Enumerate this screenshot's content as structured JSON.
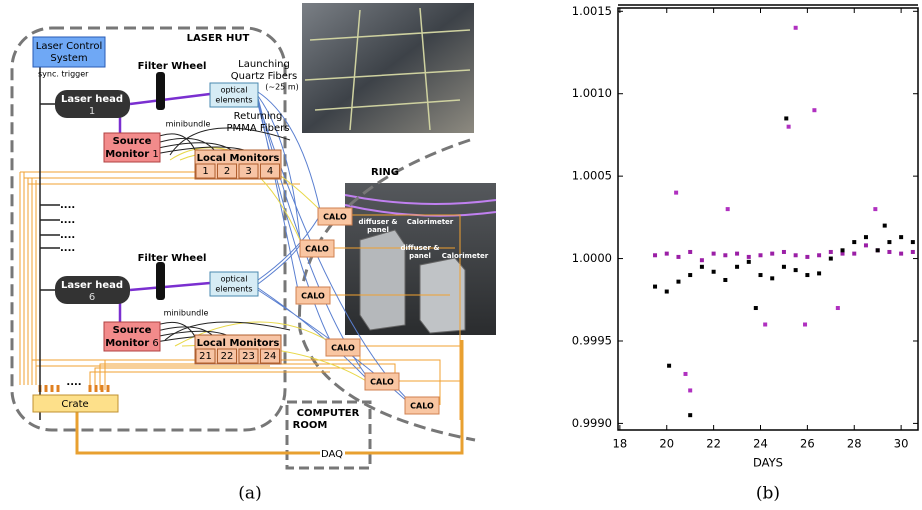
{
  "diagram": {
    "laser_hut": "LASER HUT",
    "laser_control": [
      "Laser Control",
      "System"
    ],
    "sync_trigger": "sync. trigger",
    "filter_wheels": [
      "Filter Wheel",
      "Filter Wheel"
    ],
    "laser_heads": [
      {
        "label": "Laser head",
        "number": "1"
      },
      {
        "label": "Laser head",
        "number": "6"
      }
    ],
    "optical_elements": [
      [
        "optical",
        "elements"
      ],
      [
        "optical",
        "elements"
      ]
    ],
    "launching": [
      "Launching",
      "Quartz Fibers",
      "(~25 m)"
    ],
    "returning": [
      "Returning",
      "PMMA Fibers"
    ],
    "minibundle": [
      "minibundle",
      "minibundle"
    ],
    "source_monitors": [
      {
        "label": [
          "Source",
          "Monitor"
        ],
        "number": "1"
      },
      {
        "label": [
          "Source",
          "Monitor"
        ],
        "number": "6"
      }
    ],
    "local_monitors": [
      {
        "label": "Local Monitors",
        "numbers": [
          "1",
          "2",
          "3",
          "4"
        ]
      },
      {
        "label": "Local Monitors",
        "numbers": [
          "21",
          "22",
          "23",
          "24"
        ]
      }
    ],
    "dots": [
      "....",
      "....",
      "....",
      "...."
    ],
    "crate": "Crate",
    "crate_dots": "....",
    "computer_room": [
      "COMPUTER",
      "ROOM"
    ],
    "daq": "DAQ",
    "ring": "RING",
    "calo": [
      "CALO",
      "CALO",
      "CALO",
      "CALO",
      "CALO",
      "CALO"
    ],
    "ring_photo_labels": [
      "diffuser &",
      "panel",
      "Calorimeter",
      "diffuser &",
      "panel",
      "Calorimeter"
    ]
  },
  "chart_data": {
    "type": "scatter",
    "xlabel": "DAYS",
    "xlim": [
      17.92,
      30.72
    ],
    "ylim": [
      0.99896,
      1.00152
    ],
    "xticks": [
      18,
      20,
      22,
      24,
      26,
      28,
      30
    ],
    "yticks": [
      {
        "value": 0.999,
        "label": "0.9990"
      },
      {
        "value": 0.9995,
        "label": "0.9995"
      },
      {
        "value": 1,
        "label": "1.0000"
      },
      {
        "value": 1.0005,
        "label": "1.0005"
      },
      {
        "value": 1.001,
        "label": "1.0010"
      },
      {
        "value": 1.0015,
        "label": "1.0015"
      }
    ],
    "series": [
      {
        "color": "#9b1fa6",
        "x": [
          19.5,
          20,
          20.5,
          21,
          21.5,
          22,
          22.5,
          23,
          23.5,
          24,
          24.5,
          25,
          25.5,
          26,
          26.5,
          27,
          27.5,
          28,
          28.5,
          29,
          29.5,
          30,
          30.5
        ],
        "values": [
          1.00002,
          1.00003,
          1.00001,
          1.00004,
          0.99999,
          1.00003,
          1.00002,
          1.00003,
          1.00001,
          1.00002,
          1.00003,
          1.00004,
          1.00002,
          1.00001,
          1.00002,
          1.00004,
          1.00003,
          1.00003,
          1.00008,
          1.00005,
          1.00004,
          1.00003,
          1.00004
        ]
      },
      {
        "color": "#000000",
        "x": [
          19.5,
          20,
          20.5,
          21,
          21.5,
          22,
          22.5,
          23,
          23.5,
          24,
          24.5,
          25,
          25.5,
          26,
          26.5,
          27,
          27.5,
          28,
          28.5,
          29,
          29.5,
          30,
          30.5
        ],
        "values": [
          0.99983,
          0.9998,
          0.99986,
          0.9999,
          0.99995,
          0.99992,
          0.99987,
          0.99995,
          0.99998,
          0.9999,
          0.99988,
          0.99995,
          0.99993,
          0.9999,
          0.99991,
          1,
          1.00005,
          1.0001,
          1.00013,
          1.00005,
          1.0001,
          1.00013,
          1.0001
        ]
      },
      {
        "color": "#b030c0",
        "x": [
          25.5,
          20.4,
          21.0,
          20.8,
          25.2,
          26.3,
          24.2,
          25.9,
          28.9,
          22.6,
          27.3
        ],
        "values": [
          1.0014,
          1.0004,
          0.9992,
          0.9993,
          1.0008,
          1.0009,
          0.9996,
          0.9996,
          1.0003,
          1.0003,
          0.9997
        ]
      },
      {
        "color": "#000000",
        "x": [
          25.1,
          20.1,
          21.0,
          23.8,
          29.3
        ],
        "values": [
          1.00085,
          0.99935,
          0.99905,
          0.9997,
          1.0002
        ]
      }
    ]
  },
  "captions": [
    "(a)",
    "(b)"
  ]
}
